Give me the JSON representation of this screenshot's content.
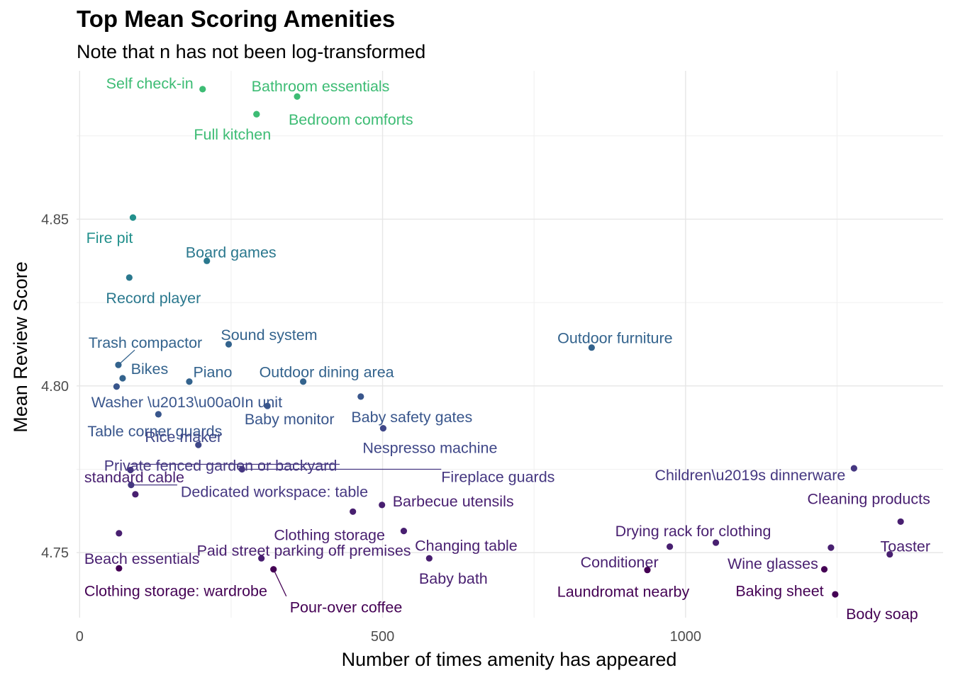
{
  "chart_data": {
    "type": "scatter",
    "title": "Top Mean Scoring Amenities",
    "subtitle": "Note that n has not been log-transformed",
    "xlabel": "Number of times amenity has appeared",
    "ylabel": "Mean Review Score",
    "xlim": [
      -5,
      1425
    ],
    "ylim": [
      4.7305,
      4.8945
    ],
    "x_ticks": [
      0,
      500,
      1000
    ],
    "x_tick_labels": [
      "0",
      "500",
      "1000"
    ],
    "y_ticks": [
      4.75,
      4.8,
      4.85
    ],
    "y_tick_labels": [
      "4.75",
      "4.80",
      "4.85"
    ],
    "grid": true,
    "legend": "none",
    "points": [
      {
        "label": "Self check-in",
        "x": 203,
        "y": 4.889,
        "color": "#3dbc74"
      },
      {
        "label": "Bathroom essentials",
        "x": 359,
        "y": 4.8868,
        "color": "#3dbc74"
      },
      {
        "label": "Bedroom comforts",
        "x": 292,
        "y": 4.8815,
        "color": "#3dbc74"
      },
      {
        "label": "Full kitchen",
        "x": 292,
        "y": 4.8815,
        "color": "#3dbc74"
      },
      {
        "label": "Fire pit",
        "x": 88,
        "y": 4.8505,
        "color": "#22908c"
      },
      {
        "label": "Board games",
        "x": 210,
        "y": 4.8375,
        "color": "#2a788e"
      },
      {
        "label": "Record player",
        "x": 82,
        "y": 4.8325,
        "color": "#2a788e"
      },
      {
        "label": "Sound system",
        "x": 246,
        "y": 4.8125,
        "color": "#33638d"
      },
      {
        "label": "Outdoor furniture",
        "x": 845,
        "y": 4.8115,
        "color": "#33638d"
      },
      {
        "label": "Trash compactor",
        "x": 64,
        "y": 4.8063,
        "color": "#33638d"
      },
      {
        "label": "Bikes",
        "x": 71,
        "y": 4.8023,
        "color": "#33638d"
      },
      {
        "label": "Piano",
        "x": 181,
        "y": 4.8013,
        "color": "#33638d"
      },
      {
        "label": "Outdoor dining area",
        "x": 369,
        "y": 4.8013,
        "color": "#33638d"
      },
      {
        "label": "Washer \\u2013\\u00a0In unit",
        "x": 61,
        "y": 4.7998,
        "color": "#39568c"
      },
      {
        "label": "Baby safety gates",
        "x": 464,
        "y": 4.7968,
        "color": "#39568c"
      },
      {
        "label": "Baby monitor",
        "x": 310,
        "y": 4.794,
        "color": "#39568c"
      },
      {
        "label": "Table corner guards",
        "x": 130,
        "y": 4.7915,
        "color": "#39568c"
      },
      {
        "label": "Nespresso machine",
        "x": 501,
        "y": 4.7873,
        "color": "#3f4788"
      },
      {
        "label": "Rice maker",
        "x": 196,
        "y": 4.7823,
        "color": "#3f4788"
      },
      {
        "label": "Private fenced garden or backyard",
        "x": 84,
        "y": 4.7748,
        "color": "#453781"
      },
      {
        "label": "Fireplace guards",
        "x": 268,
        "y": 4.775,
        "color": "#453781"
      },
      {
        "label": "Children\\u2019s dinnerware",
        "x": 1278,
        "y": 4.7753,
        "color": "#453781"
      },
      {
        "label": "Dedicated workspace: table",
        "x": 85,
        "y": 4.7703,
        "color": "#453781"
      },
      {
        "label": "standard cable",
        "x": 92,
        "y": 4.7675,
        "color": "#481f70"
      },
      {
        "label": "Barbecue utensils",
        "x": 499,
        "y": 4.7643,
        "color": "#481f70"
      },
      {
        "label": "Clothing storage",
        "x": 451,
        "y": 4.7623,
        "color": "#481f70"
      },
      {
        "label": "Cleaning products",
        "x": 1355,
        "y": 4.7593,
        "color": "#481f70"
      },
      {
        "label": "Changing table",
        "x": 535,
        "y": 4.7565,
        "color": "#481f70"
      },
      {
        "label": "Beach essentials",
        "x": 65,
        "y": 4.7558,
        "color": "#481f70"
      },
      {
        "label": "Drying rack for clothing",
        "x": 1050,
        "y": 4.753,
        "color": "#481f70"
      },
      {
        "label": "Paid street parking off premises",
        "x": 974,
        "y": 4.7518,
        "color": "#481f70"
      },
      {
        "label": "Wine glasses",
        "x": 1240,
        "y": 4.7515,
        "color": "#481f70"
      },
      {
        "label": "Toaster",
        "x": 1337,
        "y": 4.7495,
        "color": "#481f70"
      },
      {
        "label": "Conditioner",
        "x": 300,
        "y": 4.7483,
        "color": "#481f70"
      },
      {
        "label": "Baby bath",
        "x": 577,
        "y": 4.7483,
        "color": "#481f70"
      },
      {
        "label": "Clothing storage: wardrobe",
        "x": 65,
        "y": 4.7453,
        "color": "#440154"
      },
      {
        "label": "Pour-over coffee",
        "x": 320,
        "y": 4.745,
        "color": "#440154"
      },
      {
        "label": "Laundromat nearby",
        "x": 937,
        "y": 4.7448,
        "color": "#440154"
      },
      {
        "label": "Baking sheet",
        "x": 1229,
        "y": 4.745,
        "color": "#440154"
      },
      {
        "label": "Body soap",
        "x": 1247,
        "y": 4.7375,
        "color": "#440154"
      }
    ]
  }
}
